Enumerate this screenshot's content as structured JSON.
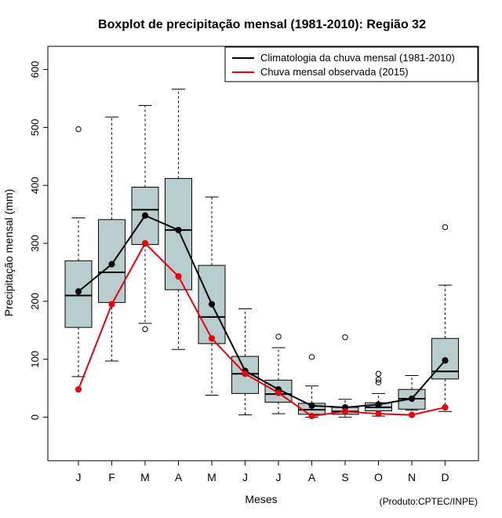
{
  "chart_data": {
    "type": "boxplot",
    "title": "Boxplot de precipitação mensal (1981-2010): Região 32",
    "xlabel": "Meses",
    "ylabel": "Precipitação mensal (mm)",
    "credit": "(Produto:CPTEC/INPE)",
    "categories": [
      "J",
      "F",
      "M",
      "A",
      "M",
      "J",
      "J",
      "A",
      "S",
      "O",
      "N",
      "D"
    ],
    "ylim": [
      -75,
      640
    ],
    "yticks": [
      "0",
      "100",
      "200",
      "300",
      "400",
      "500",
      "600"
    ],
    "box_fill": "#b8cdcd",
    "boxes": [
      {
        "whisker_low": 70,
        "q1": 155,
        "median": 210,
        "q3": 270,
        "whisker_high": 344,
        "outliers": [
          497
        ]
      },
      {
        "whisker_low": 97,
        "q1": 198,
        "median": 250,
        "q3": 341,
        "whisker_high": 518,
        "outliers": []
      },
      {
        "whisker_low": 162,
        "q1": 298,
        "median": 358,
        "q3": 397,
        "whisker_high": 538,
        "outliers": [
          152
        ]
      },
      {
        "whisker_low": 117,
        "q1": 220,
        "median": 323,
        "q3": 412,
        "whisker_high": 566,
        "outliers": []
      },
      {
        "whisker_low": 38,
        "q1": 127,
        "median": 173,
        "q3": 262,
        "whisker_high": 380,
        "outliers": []
      },
      {
        "whisker_low": 4,
        "q1": 41,
        "median": 75,
        "q3": 105,
        "whisker_high": 187,
        "outliers": []
      },
      {
        "whisker_low": 6,
        "q1": 26,
        "median": 40,
        "q3": 64,
        "whisker_high": 120,
        "outliers": [
          139
        ]
      },
      {
        "whisker_low": 0,
        "q1": 5,
        "median": 13,
        "q3": 24,
        "whisker_high": 54,
        "outliers": [
          104
        ]
      },
      {
        "whisker_low": 0,
        "q1": 5,
        "median": 10,
        "q3": 17,
        "whisker_high": 31,
        "outliers": [
          138
        ]
      },
      {
        "whisker_low": 2,
        "q1": 11,
        "median": 17,
        "q3": 25,
        "whisker_high": 41,
        "outliers": [
          60,
          65,
          75
        ]
      },
      {
        "whisker_low": 12,
        "q1": 14,
        "median": 32,
        "q3": 48,
        "whisker_high": 72,
        "outliers": []
      },
      {
        "whisker_low": 10,
        "q1": 66,
        "median": 79,
        "q3": 136,
        "whisker_high": 228,
        "outliers": [
          328
        ]
      }
    ],
    "series": [
      {
        "name": "Climatologia da chuva mensal (1981-2010)",
        "color": "#000000",
        "values": [
          217,
          264,
          348,
          323,
          195,
          80,
          48,
          20,
          17,
          22,
          32,
          98
        ]
      },
      {
        "name": "Chuva mensal observada (2015)",
        "color": "#e8000b",
        "values": [
          48,
          195,
          300,
          243,
          136,
          75,
          42,
          2,
          10,
          6,
          4,
          17
        ]
      }
    ],
    "legend_position": "top-right"
  }
}
